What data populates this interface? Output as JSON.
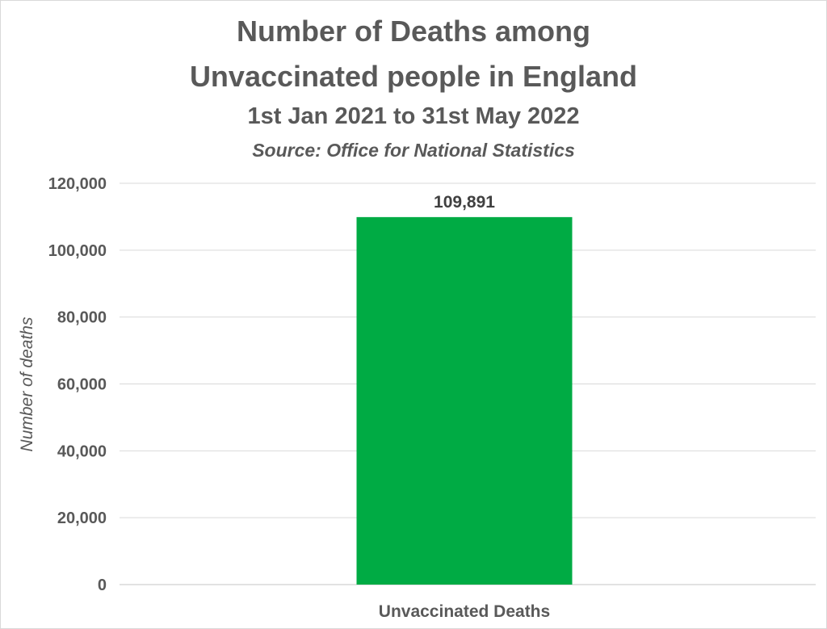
{
  "chart_data": {
    "type": "bar",
    "title_line1": "Number of Deaths among",
    "title_line2": "Unvaccinated people in England",
    "subtitle": "1st Jan 2021 to 31st May 2022",
    "source": "Source: Office for National Statistics",
    "ylabel": "Number of deaths",
    "categories": [
      "Unvaccinated Deaths"
    ],
    "values": [
      109891
    ],
    "data_labels": [
      "109,891"
    ],
    "ylim": [
      0,
      120000
    ],
    "yticks": [
      0,
      20000,
      40000,
      60000,
      80000,
      100000,
      120000
    ],
    "ytick_labels": [
      "0",
      "20,000",
      "40,000",
      "60,000",
      "80,000",
      "100,000",
      "120,000"
    ],
    "grid": true,
    "legend": "none",
    "bar_color": "#00ab44",
    "grid_color": "#d9d9d9",
    "text_color": "#595959"
  }
}
